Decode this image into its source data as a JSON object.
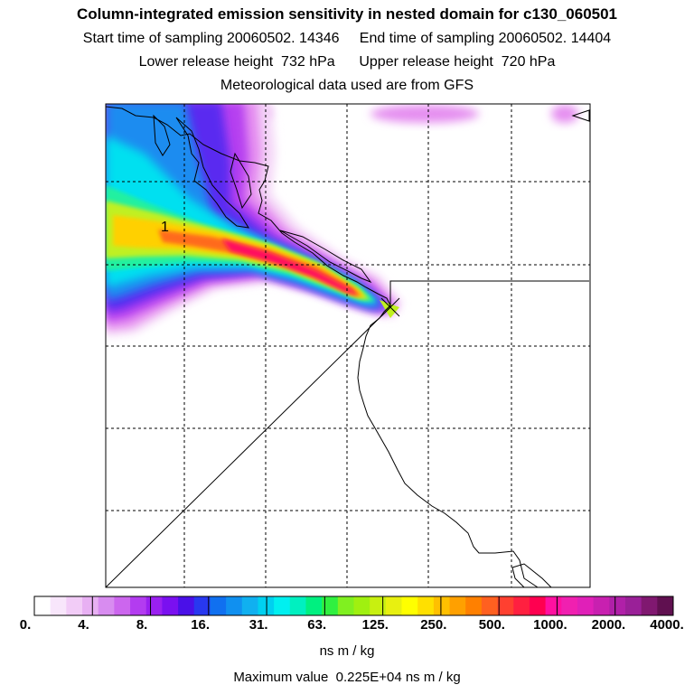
{
  "header": {
    "title": "Column-integrated emission sensitivity in nested domain for c130_060501",
    "sampling_line": "Start time of sampling 20060502. 14346     End time of sampling 20060502. 14404",
    "release_line": "Lower release height  732 hPa      Upper release height  720 hPa",
    "met_line": "Meteorological data used are from GFS"
  },
  "map": {
    "cluster_label": "1",
    "plume_colors": [
      "#f4d6f7",
      "#e58ef0",
      "#b640f0",
      "#5a2cf0",
      "#1a8cf0",
      "#00e0f0",
      "#20f0a0",
      "#c0f020",
      "#ffd000",
      "#ff6a1a",
      "#ff1060"
    ]
  },
  "colorbar": {
    "labels": [
      "0.",
      "4.",
      "8.",
      "16.",
      "31.",
      "63.",
      "125.",
      "250.",
      "500.",
      "1000.",
      "2000.",
      "4000."
    ],
    "colors": [
      "#ffffff",
      "#f8e6fb",
      "#f2ccf7",
      "#e8b0f3",
      "#d88cf0",
      "#cc66ee",
      "#b33cf0",
      "#9a20f0",
      "#7a10f0",
      "#4a10e8",
      "#2838f0",
      "#1070f0",
      "#1090f0",
      "#10b0f0",
      "#00d0f0",
      "#00f0f0",
      "#00f0c0",
      "#00f080",
      "#30f040",
      "#80f020",
      "#a0f010",
      "#c8f010",
      "#e8f010",
      "#ffff00",
      "#ffe000",
      "#ffc000",
      "#ffa000",
      "#ff8000",
      "#ff6020",
      "#ff4030",
      "#ff2040",
      "#ff0050",
      "#ff10a0",
      "#f020b0",
      "#e020b8",
      "#c820b0",
      "#b020a8",
      "#9a2098",
      "#801870",
      "#601050"
    ],
    "units": "ns m / kg"
  },
  "footer": {
    "max_value": "Maximum value  0.225E+04 ns m / kg"
  }
}
